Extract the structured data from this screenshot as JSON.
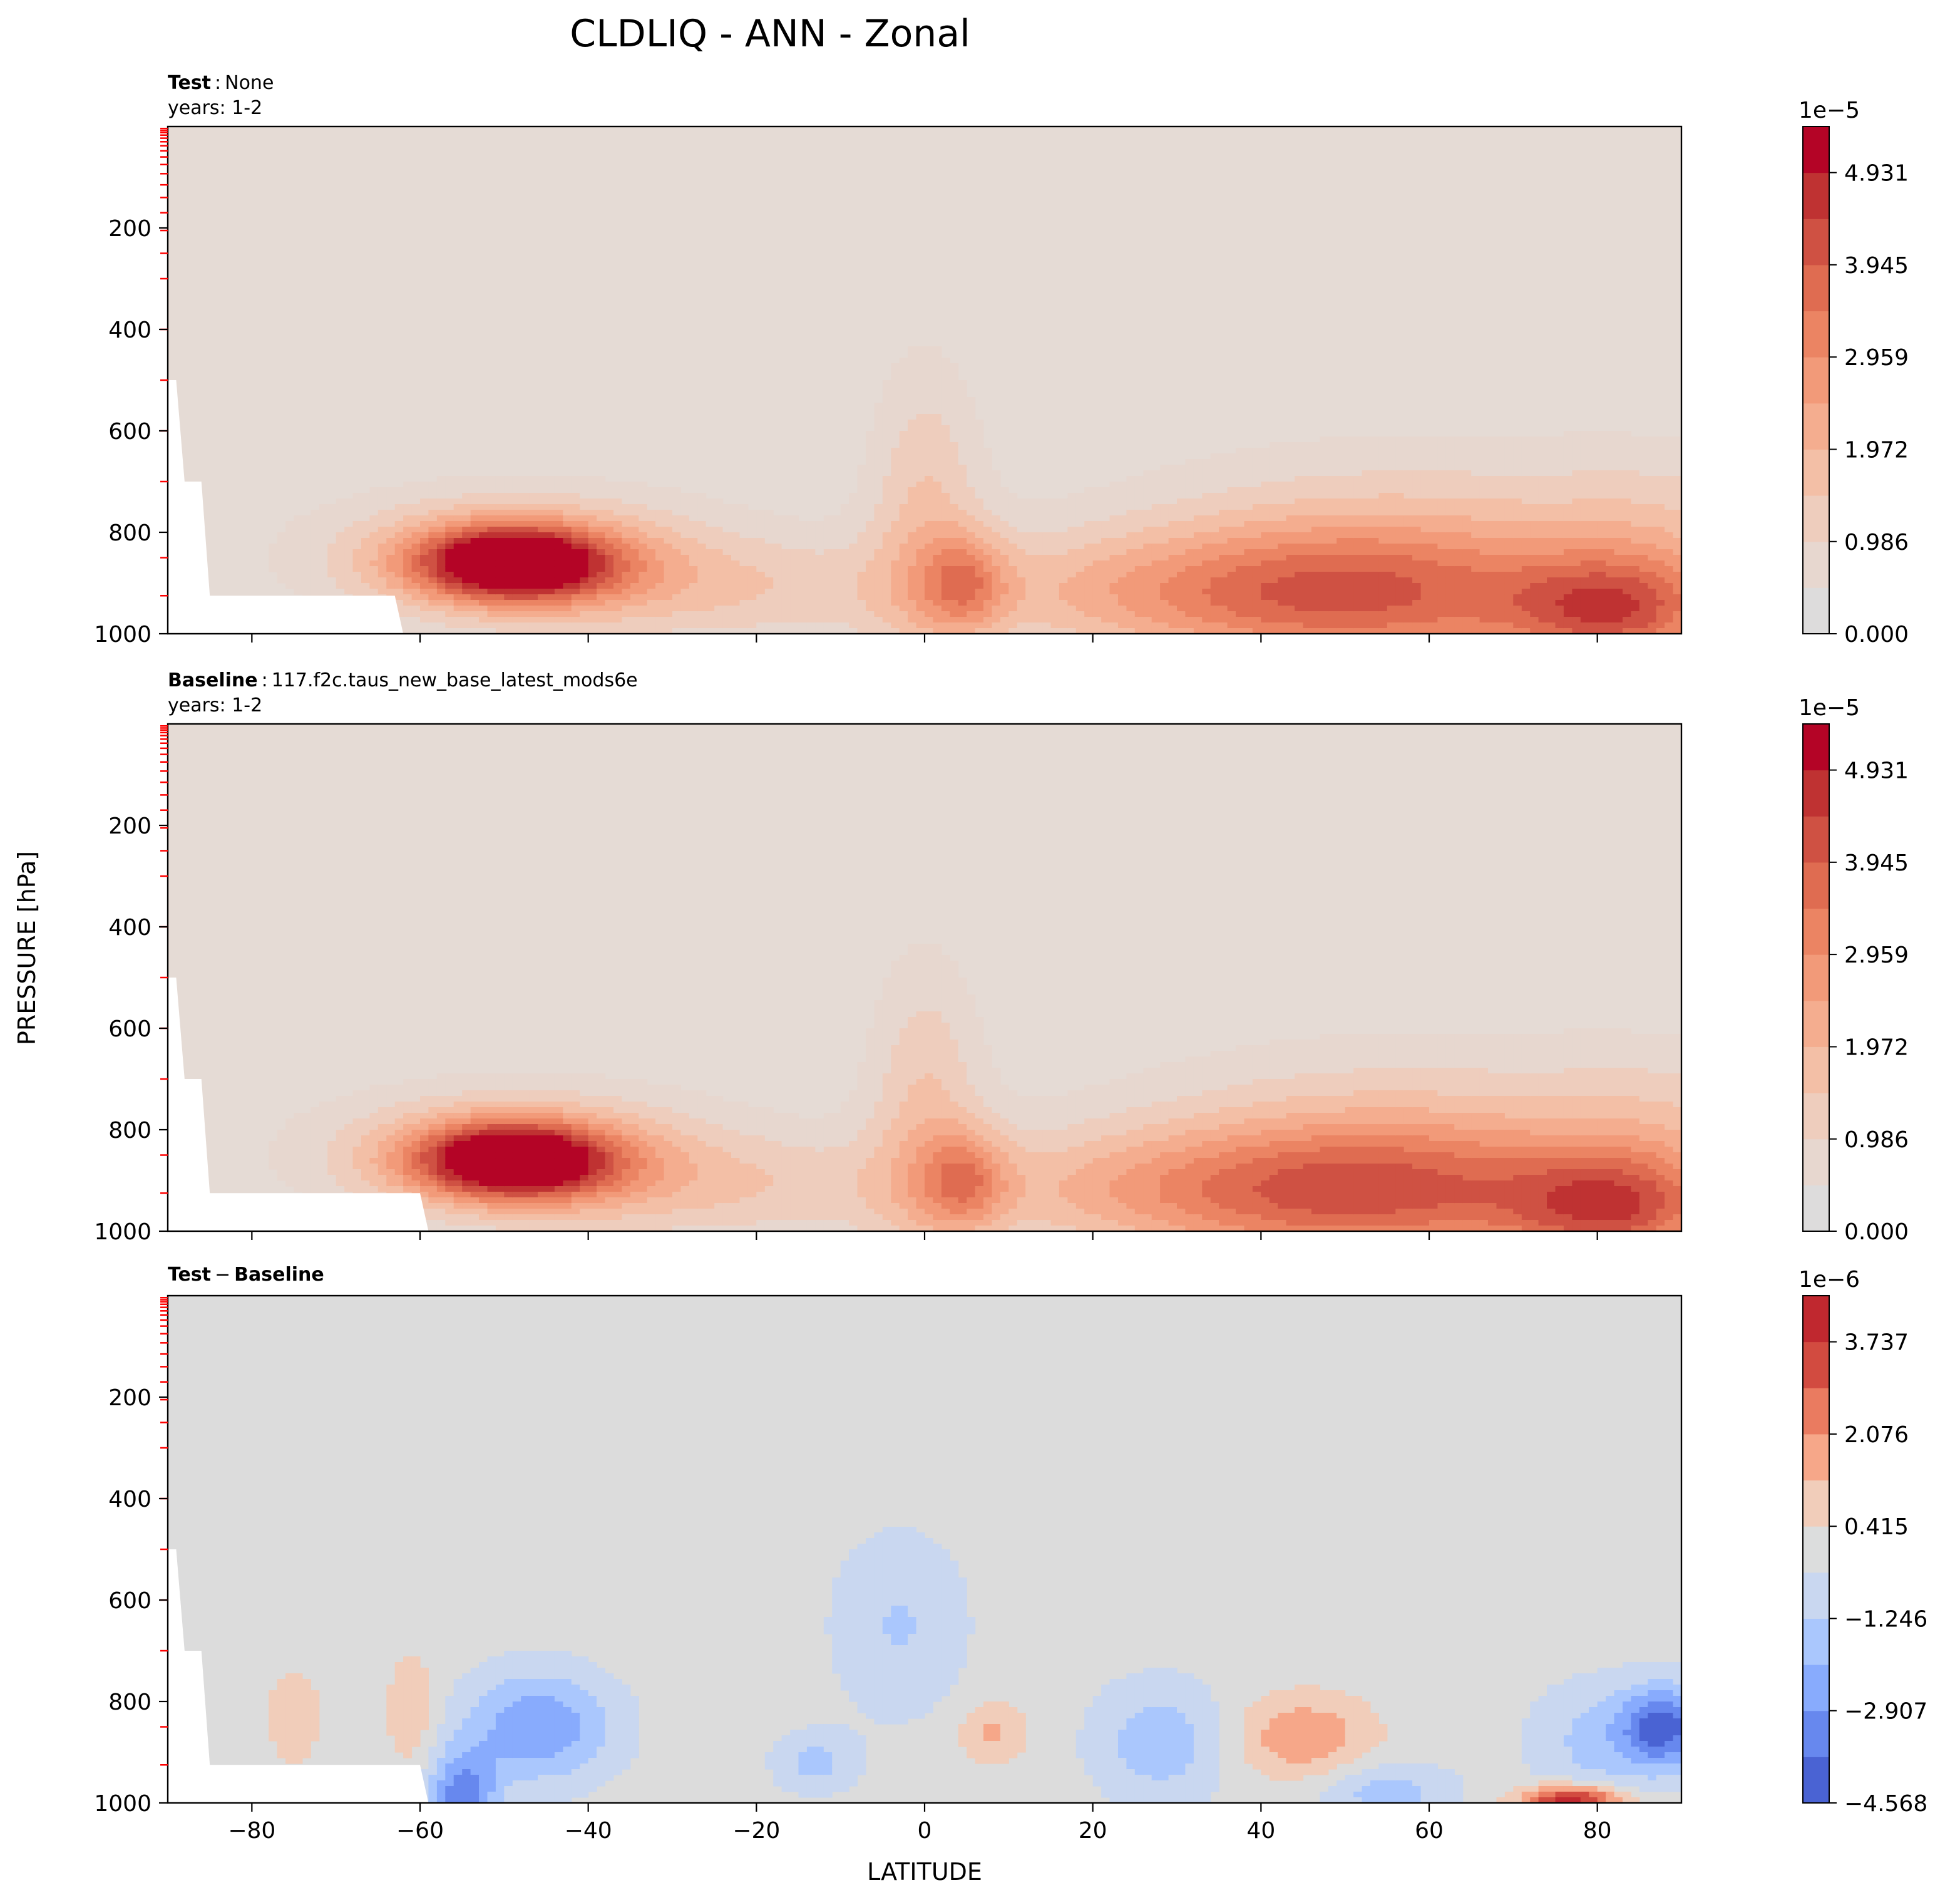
{
  "figure": {
    "title": "CLDLIQ - ANN - Zonal",
    "xlabel": "LATITUDE",
    "ylabel": "PRESSURE [hPa]"
  },
  "chart_data": [
    {
      "type": "contour",
      "panel": "test",
      "header_bold": "Test",
      "header_sep": ":",
      "header_value": "None",
      "subheader": "years: 1-2",
      "x_ticks": [
        "−80",
        "−60",
        "−40",
        "−20",
        "0",
        "20",
        "40",
        "60",
        "80"
      ],
      "x_tick_values": [
        -80,
        -60,
        -40,
        -20,
        0,
        20,
        40,
        60,
        80
      ],
      "xlim": [
        -90,
        90
      ],
      "y_ticks": [
        "200",
        "400",
        "600",
        "800",
        "1000"
      ],
      "y_tick_values": [
        200,
        400,
        600,
        800,
        1000
      ],
      "ylim": [
        1000,
        0
      ],
      "colorbar_exponent": "1e−5",
      "colorbar_ticks": [
        "0.000",
        "0.986",
        "1.972",
        "2.959",
        "3.945",
        "4.931"
      ],
      "colorbar_levels": [
        0.0,
        0.493,
        0.986,
        1.479,
        1.972,
        2.466,
        2.959,
        3.452,
        3.945,
        4.438,
        4.931,
        5.424
      ],
      "colorbar_colors": [
        "#dddcdc",
        "#e7d7cf",
        "#eecdbd",
        "#f3bfa6",
        "#f4ad8f",
        "#f29a79",
        "#eb8463",
        "#df6c51",
        "#cf5143",
        "#bf3232",
        "#b40426"
      ],
      "background": "#e5dbd5"
    },
    {
      "type": "contour",
      "panel": "baseline",
      "header_bold": "Baseline",
      "header_sep": ":",
      "header_value": "117.f2c.taus_new_base_latest_mods6e",
      "subheader": "years: 1-2",
      "x_ticks": [
        "−80",
        "−60",
        "−40",
        "−20",
        "0",
        "20",
        "40",
        "60",
        "80"
      ],
      "x_tick_values": [
        -80,
        -60,
        -40,
        -20,
        0,
        20,
        40,
        60,
        80
      ],
      "xlim": [
        -90,
        90
      ],
      "y_ticks": [
        "200",
        "400",
        "600",
        "800",
        "1000"
      ],
      "y_tick_values": [
        200,
        400,
        600,
        800,
        1000
      ],
      "ylim": [
        1000,
        0
      ],
      "colorbar_exponent": "1e−5",
      "colorbar_ticks": [
        "0.000",
        "0.986",
        "1.972",
        "2.959",
        "3.945",
        "4.931"
      ],
      "colorbar_levels": [
        0.0,
        0.493,
        0.986,
        1.479,
        1.972,
        2.466,
        2.959,
        3.452,
        3.945,
        4.438,
        4.931,
        5.424
      ],
      "colorbar_colors": [
        "#dddcdc",
        "#e7d7cf",
        "#eecdbd",
        "#f3bfa6",
        "#f4ad8f",
        "#f29a79",
        "#eb8463",
        "#df6c51",
        "#cf5143",
        "#bf3232",
        "#b40426"
      ],
      "background": "#e5dbd5"
    },
    {
      "type": "contour",
      "panel": "difference",
      "header_bold": "Test",
      "header_sep": "−",
      "header_value": "Baseline",
      "subheader": "",
      "x_ticks": [
        "−80",
        "−60",
        "−40",
        "−20",
        "0",
        "20",
        "40",
        "60",
        "80"
      ],
      "x_tick_values": [
        -80,
        -60,
        -40,
        -20,
        0,
        20,
        40,
        60,
        80
      ],
      "xlim": [
        -90,
        90
      ],
      "y_ticks": [
        "200",
        "400",
        "600",
        "800",
        "1000"
      ],
      "y_tick_values": [
        200,
        400,
        600,
        800,
        1000
      ],
      "ylim": [
        1000,
        0
      ],
      "colorbar_exponent": "1e−6",
      "colorbar_ticks": [
        "−4.568",
        "−2.907",
        "−1.246",
        "0.415",
        "2.076",
        "3.737"
      ],
      "colorbar_levels": [
        -4.568,
        -3.738,
        -2.907,
        -2.077,
        -1.246,
        -0.415,
        0.415,
        1.246,
        2.076,
        2.907,
        3.737,
        4.568
      ],
      "colorbar_colors": [
        "#4a63d3",
        "#6788ee",
        "#88abfd",
        "#aac7fd",
        "#c9d7f0",
        "#dcdddd",
        "#f1cdba",
        "#f6a789",
        "#ea7b60",
        "#d24b40",
        "#c0282f"
      ],
      "background": "#dcdcdc"
    }
  ]
}
